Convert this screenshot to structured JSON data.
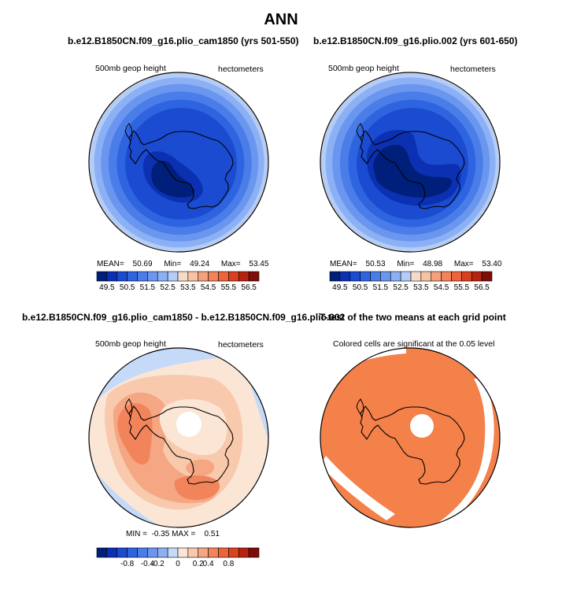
{
  "title": "ANN",
  "colors": {
    "blue_red_16": [
      "#001f7a",
      "#0b31b2",
      "#1a4bd0",
      "#2f64e0",
      "#4a7de8",
      "#6a96ef",
      "#8cb0f4",
      "#b3cdf8",
      "#f5dcc8",
      "#f8c3a4",
      "#f6a17c",
      "#f3835a",
      "#ec643c",
      "#d9401f",
      "#b6240f",
      "#7f0d05"
    ],
    "anomaly_16": [
      "#001f7a",
      "#0b31b2",
      "#1a4bd0",
      "#2f64e0",
      "#4a7de8",
      "#6a96ef",
      "#8cb0f4",
      "#c4daf8",
      "#fbe6d6",
      "#f8c9ad",
      "#f5a682",
      "#f2845c",
      "#ea643c",
      "#d84420",
      "#b6240f",
      "#7f0d05"
    ],
    "signif": "#f4804a",
    "coast": "#000000"
  },
  "chart_data": [
    {
      "type": "heatmap",
      "title": "b.e12.B1850CN.f09_g16.plio_cam1850 (yrs 501-550)",
      "left_label": "500mb geop height",
      "right_label": "hectometers",
      "stats": {
        "mean": "50.69",
        "min": "49.24",
        "max": "53.45"
      },
      "stat_labels": {
        "mean": "MEAN=",
        "min": "Min=",
        "max": "Max="
      },
      "colorbar_ticks": [
        "49.5",
        "50.5",
        "51.5",
        "52.5",
        "53.5",
        "54.5",
        "55.5",
        "56.5"
      ]
    },
    {
      "type": "heatmap",
      "title": "b.e12.B1850CN.f09_g16.plio.002 (yrs 601-650)",
      "left_label": "500mb geop height",
      "right_label": "hectometers",
      "stats": {
        "mean": "50.53",
        "min": "48.98",
        "max": "53.40"
      },
      "stat_labels": {
        "mean": "MEAN=",
        "min": "Min=",
        "max": "Max="
      },
      "colorbar_ticks": [
        "49.5",
        "50.5",
        "51.5",
        "52.5",
        "53.5",
        "54.5",
        "55.5",
        "56.5"
      ]
    },
    {
      "type": "heatmap",
      "title": "b.e12.B1850CN.f09_g16.plio_cam1850 - b.e12.B1850CN.f09_g16.plio.002",
      "left_label": "500mb geop height",
      "right_label": "hectometers",
      "stats_text": "MIN =  -0.35 MAX =    0.51",
      "colorbar_ticks": [
        "-0.8",
        "-0.4",
        "-0.2",
        "0",
        "0.2",
        "0.4",
        "0.8"
      ]
    },
    {
      "type": "heatmap",
      "title": "T-test of the two means at each grid point",
      "subtitle": "Colored cells are significant at the 0.05 level"
    }
  ]
}
